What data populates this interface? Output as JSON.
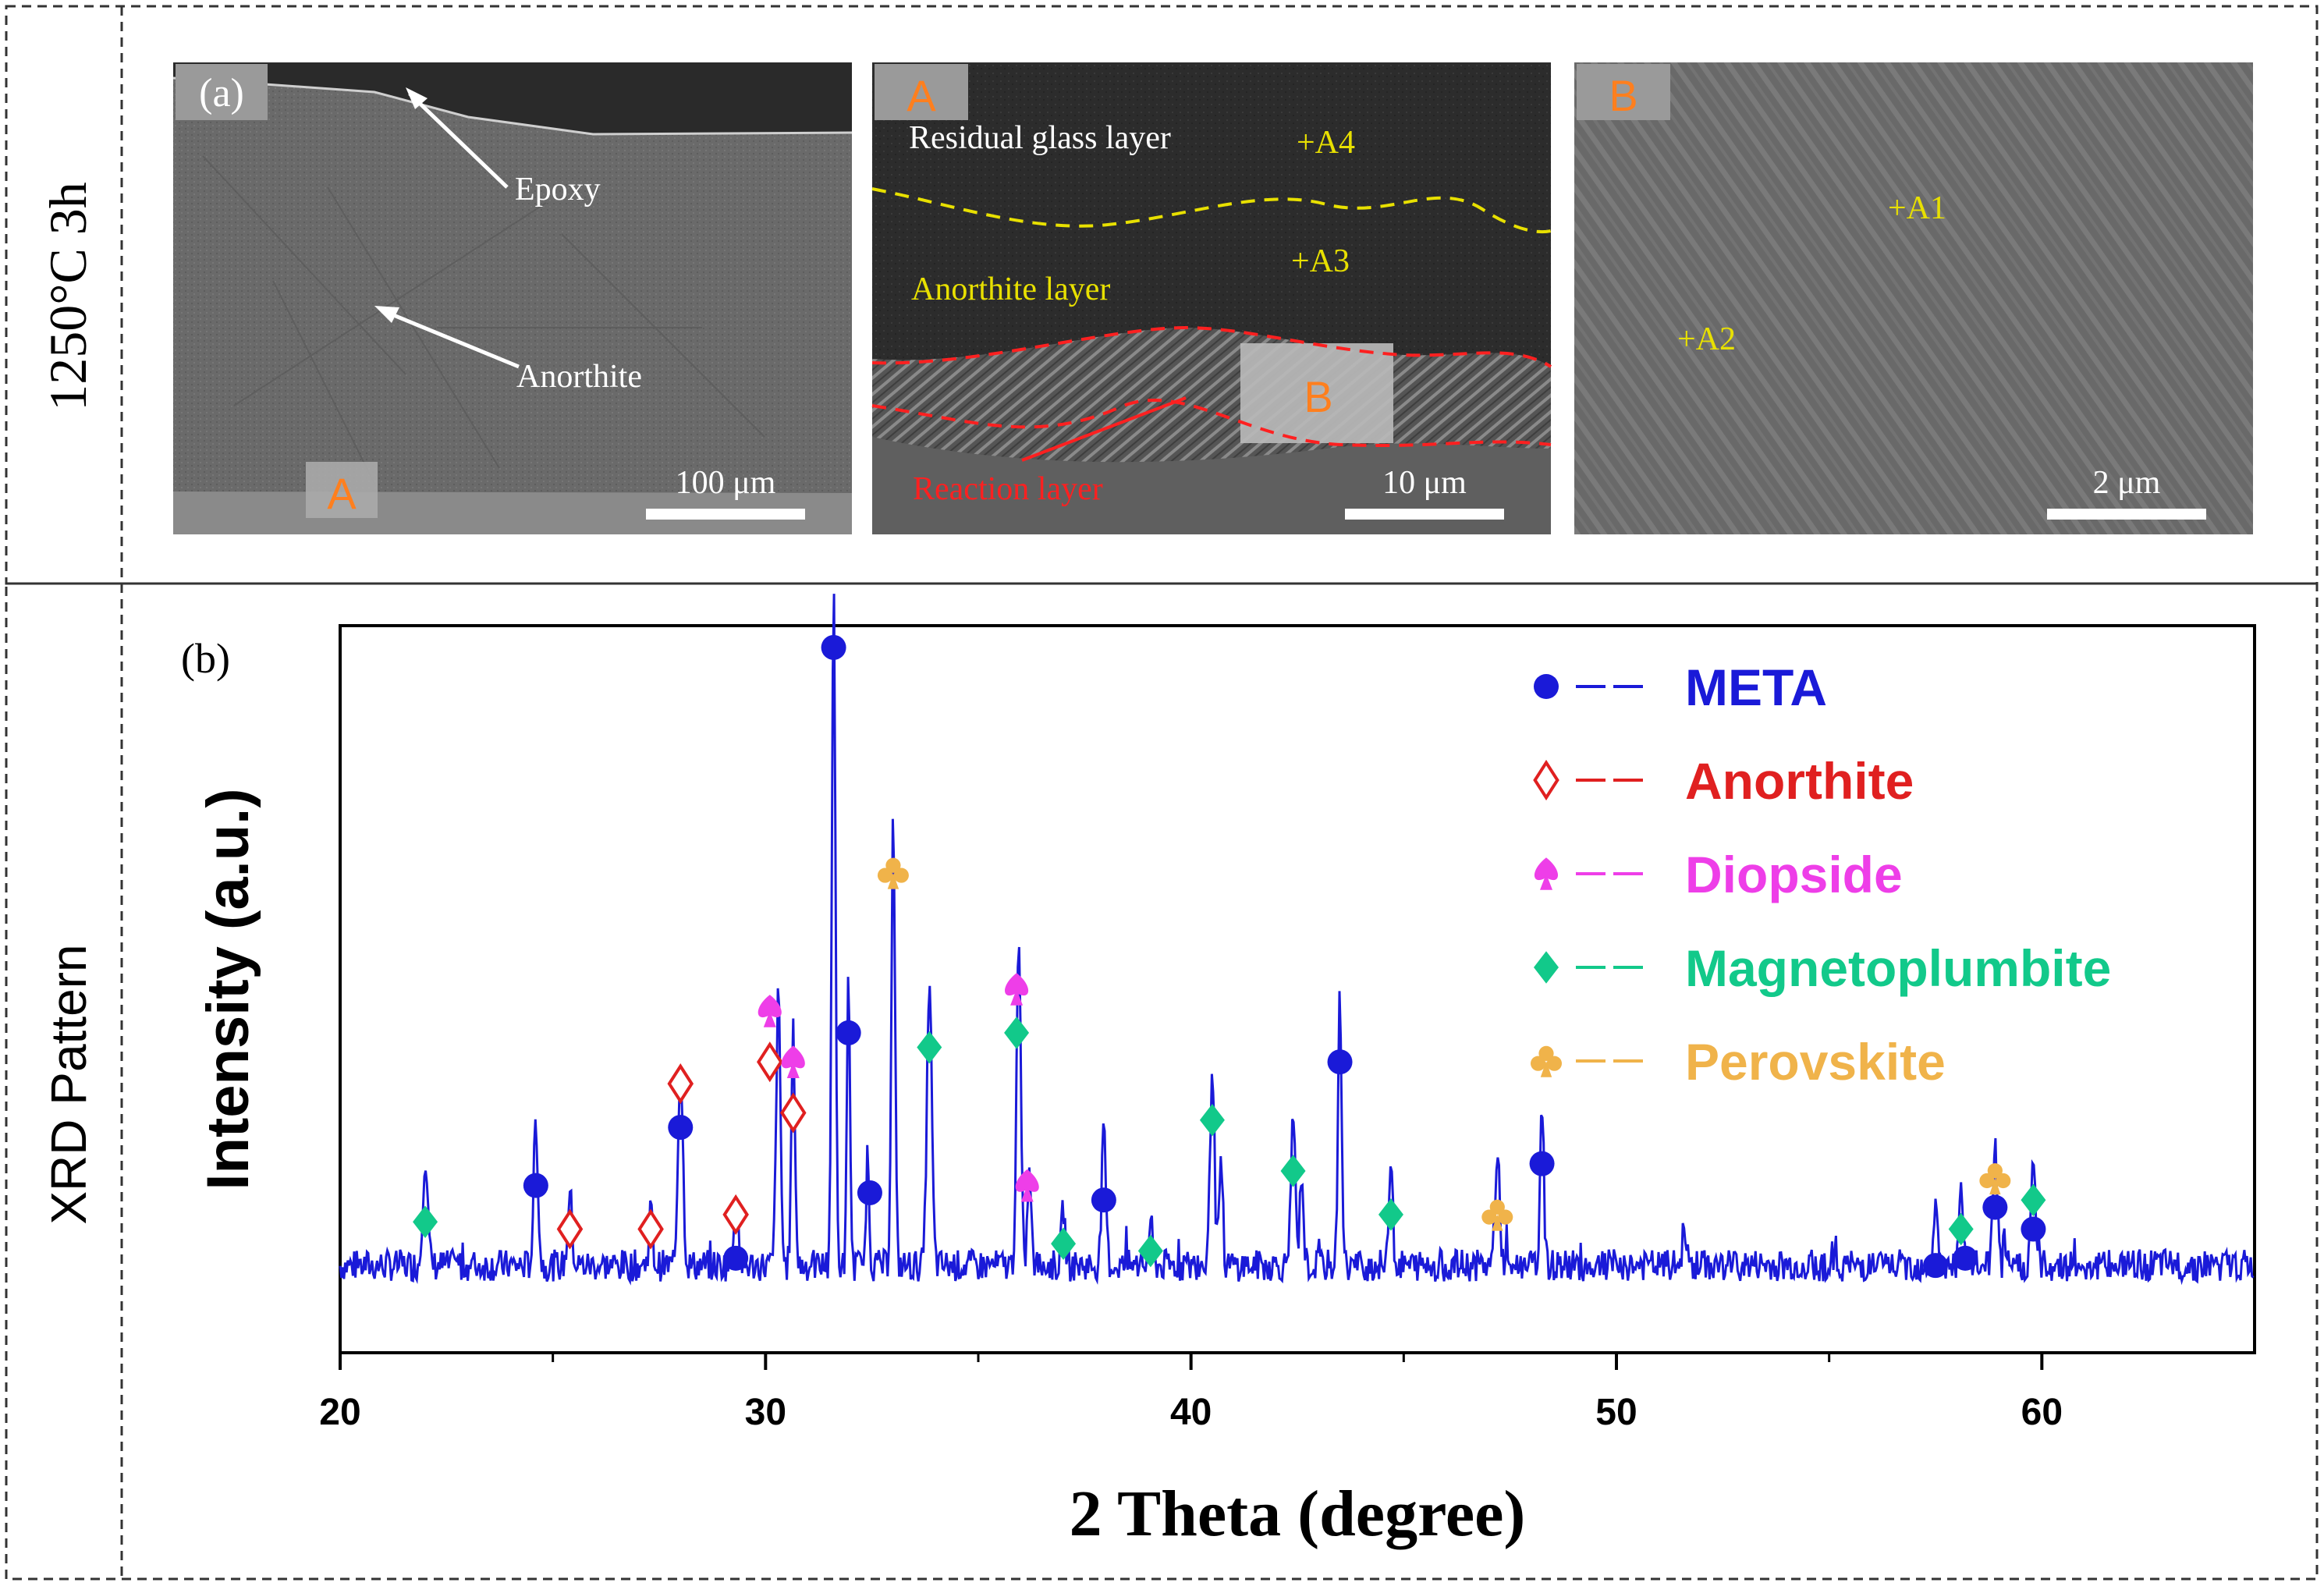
{
  "row_labels": {
    "top": "1250°C 3h",
    "bottom": "XRD Pattern"
  },
  "sem": {
    "panel_a": {
      "label": "(a)",
      "epoxy": "Epoxy",
      "anorthite": "Anorthite",
      "tag": "A",
      "scale": "100 μm"
    },
    "panel_A": {
      "tag": "A",
      "residual": "Residual glass layer",
      "anorthite_layer": "Anorthite layer",
      "reaction": "Reaction layer",
      "a4": "+A4",
      "a3": "+A3",
      "box_tag": "B",
      "scale": "10 μm"
    },
    "panel_B": {
      "tag": "B",
      "a1": "+A1",
      "a2": "+A2",
      "scale": "2 μm"
    }
  },
  "chart_data": {
    "type": "line",
    "panel_label": "(b)",
    "xlabel": "2 Theta (degree)",
    "ylabel": "Intensity (a.u.)",
    "xlim": [
      20,
      65
    ],
    "ylim": [
      0,
      100
    ],
    "xticks": [
      20,
      30,
      40,
      50,
      60
    ],
    "baseline": 12,
    "noise_amp": 2.2,
    "peaks": [
      [
        22.0,
        15,
        0.08
      ],
      [
        24.6,
        20,
        0.07
      ],
      [
        25.4,
        10,
        0.07
      ],
      [
        27.3,
        8,
        0.06
      ],
      [
        28.0,
        28,
        0.08
      ],
      [
        29.3,
        10,
        0.07
      ],
      [
        30.3,
        37,
        0.07
      ],
      [
        30.65,
        32,
        0.06
      ],
      [
        31.6,
        93,
        0.06
      ],
      [
        31.95,
        40,
        0.05
      ],
      [
        32.4,
        16,
        0.05
      ],
      [
        33.0,
        62,
        0.06
      ],
      [
        33.85,
        39,
        0.08
      ],
      [
        35.95,
        44,
        0.07
      ],
      [
        36.2,
        13,
        0.06
      ],
      [
        37.0,
        8,
        0.06
      ],
      [
        37.95,
        18,
        0.07
      ],
      [
        39.05,
        6,
        0.06
      ],
      [
        40.5,
        28,
        0.07
      ],
      [
        40.7,
        13,
        0.06
      ],
      [
        42.4,
        21,
        0.07
      ],
      [
        42.6,
        13,
        0.06
      ],
      [
        43.5,
        37,
        0.06
      ],
      [
        44.7,
        16,
        0.06
      ],
      [
        47.2,
        15,
        0.08
      ],
      [
        48.25,
        23,
        0.06
      ],
      [
        51.6,
        6,
        0.06
      ],
      [
        57.5,
        9,
        0.06
      ],
      [
        58.1,
        10,
        0.06
      ],
      [
        58.9,
        17,
        0.07
      ],
      [
        59.8,
        14,
        0.07
      ]
    ],
    "markers": {
      "META": [
        [
          24.6,
          23
        ],
        [
          28.0,
          31
        ],
        [
          29.3,
          13
        ],
        [
          31.6,
          97
        ],
        [
          31.95,
          44
        ],
        [
          32.45,
          22
        ],
        [
          37.95,
          21
        ],
        [
          43.5,
          40
        ],
        [
          48.25,
          26
        ],
        [
          57.5,
          12
        ],
        [
          58.2,
          13
        ],
        [
          58.9,
          20
        ],
        [
          59.8,
          17
        ]
      ],
      "Anorthite": [
        [
          25.4,
          17
        ],
        [
          27.3,
          17
        ],
        [
          28.0,
          37
        ],
        [
          29.3,
          19
        ],
        [
          30.1,
          40
        ],
        [
          30.65,
          33
        ]
      ],
      "Diopside": [
        [
          30.1,
          47
        ],
        [
          30.65,
          40
        ],
        [
          35.9,
          50
        ],
        [
          36.15,
          23
        ]
      ],
      "Magnetoplumbite": [
        [
          22.0,
          18
        ],
        [
          33.85,
          42
        ],
        [
          35.9,
          44
        ],
        [
          37.0,
          15
        ],
        [
          39.05,
          14
        ],
        [
          40.5,
          32
        ],
        [
          42.4,
          25
        ],
        [
          44.7,
          19
        ],
        [
          58.1,
          17
        ],
        [
          59.8,
          21
        ]
      ],
      "Perovskite": [
        [
          33.0,
          66
        ],
        [
          47.2,
          19
        ],
        [
          58.9,
          24
        ]
      ]
    },
    "series": [
      {
        "name": "META",
        "color": "#1a1ad8",
        "symbol": "circle"
      },
      {
        "name": "Anorthite",
        "color": "#e02020",
        "symbol": "diamond-open"
      },
      {
        "name": "Diopside",
        "color": "#ee3ee8",
        "symbol": "spade"
      },
      {
        "name": "Magnetoplumbite",
        "color": "#12c98a",
        "symbol": "diamond"
      },
      {
        "name": "Perovskite",
        "color": "#f0b34a",
        "symbol": "club"
      }
    ],
    "line_color": "#1a1ad8"
  }
}
